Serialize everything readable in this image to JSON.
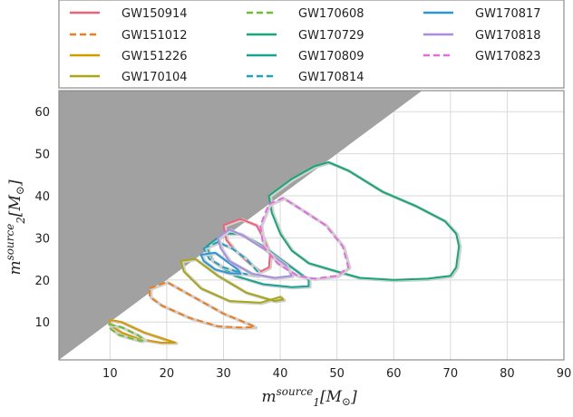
{
  "chart_data": {
    "type": "line",
    "xlabel": "m_1^{source}[M_⊙]",
    "ylabel": "m_2^{source}[M_⊙]",
    "xlim": [
      1,
      90
    ],
    "ylim": [
      1,
      65
    ],
    "xticks": [
      "10",
      "20",
      "30",
      "40",
      "50",
      "60",
      "70",
      "80",
      "90"
    ],
    "yticks": [
      "10",
      "20",
      "30",
      "40",
      "50",
      "60"
    ],
    "grid": true,
    "legend_position": "top",
    "excluded_region": "m2 > m1 (shaded gray)",
    "series": [
      {
        "name": "GW150914",
        "color": "#f2617a",
        "dash": "solid",
        "values": [
          [
            30,
            33
          ],
          [
            33,
            34.5
          ],
          [
            35.8,
            33
          ],
          [
            37,
            30
          ],
          [
            38.2,
            26
          ],
          [
            38,
            23
          ],
          [
            36.5,
            22
          ],
          [
            34.5,
            24
          ],
          [
            32,
            27
          ],
          [
            30.5,
            29.5
          ]
        ]
      },
      {
        "name": "GW151012",
        "color": "#ef7d1a",
        "dash": "dashed",
        "values": [
          [
            17,
            18
          ],
          [
            20,
            19.5
          ],
          [
            24,
            16.5
          ],
          [
            30,
            12
          ],
          [
            35,
            9.2
          ],
          [
            35.5,
            8.8
          ],
          [
            33,
            8.7
          ],
          [
            29,
            9
          ],
          [
            24,
            11
          ],
          [
            19,
            14
          ],
          [
            17,
            16
          ]
        ]
      },
      {
        "name": "GW151226",
        "color": "#d49a00",
        "dash": "solid",
        "values": [
          [
            10,
            10.5
          ],
          [
            12,
            10
          ],
          [
            16,
            7.5
          ],
          [
            21,
            5.3
          ],
          [
            21.5,
            5.1
          ],
          [
            19,
            5.1
          ],
          [
            15,
            6
          ],
          [
            12,
            7.5
          ],
          [
            10,
            9.3
          ]
        ]
      },
      {
        "name": "GW170104",
        "color": "#a7a717",
        "dash": "solid",
        "values": [
          [
            22.5,
            24.5
          ],
          [
            25,
            25
          ],
          [
            29,
            21
          ],
          [
            34,
            17
          ],
          [
            39,
            15
          ],
          [
            40.5,
            15.3
          ],
          [
            40,
            16
          ],
          [
            36.5,
            14.6
          ],
          [
            31,
            15
          ],
          [
            26,
            18
          ],
          [
            23,
            22
          ]
        ]
      },
      {
        "name": "GW170608",
        "color": "#6bbf2e",
        "dash": "dashed",
        "values": [
          [
            9.8,
            9.5
          ],
          [
            12,
            8.8
          ],
          [
            15,
            6.8
          ],
          [
            16,
            5.8
          ],
          [
            15.5,
            5.5
          ],
          [
            14,
            6
          ],
          [
            11.5,
            7
          ],
          [
            10,
            8.5
          ]
        ]
      },
      {
        "name": "GW170729",
        "color": "#14a876",
        "dash": "solid",
        "values": [
          [
            38,
            40
          ],
          [
            42,
            44
          ],
          [
            46,
            47
          ],
          [
            48.5,
            48
          ],
          [
            52,
            46
          ],
          [
            58,
            41
          ],
          [
            64,
            37.5
          ],
          [
            69,
            34
          ],
          [
            71,
            31
          ],
          [
            71.5,
            28
          ],
          [
            71,
            23
          ],
          [
            70,
            21
          ],
          [
            66,
            20.3
          ],
          [
            60,
            20
          ],
          [
            54,
            20.5
          ],
          [
            50,
            22
          ],
          [
            45,
            24
          ],
          [
            42,
            27
          ],
          [
            40,
            31
          ],
          [
            38.5,
            36
          ]
        ]
      },
      {
        "name": "GW170809",
        "color": "#17a592",
        "dash": "solid",
        "values": [
          [
            27,
            28
          ],
          [
            30,
            31
          ],
          [
            33,
            31
          ],
          [
            37,
            28
          ],
          [
            42,
            23
          ],
          [
            45,
            20
          ],
          [
            45,
            18.5
          ],
          [
            42,
            18.3
          ],
          [
            37,
            19
          ],
          [
            32,
            21
          ],
          [
            28,
            24.5
          ]
        ]
      },
      {
        "name": "GW170814",
        "color": "#21a1c2",
        "dash": "dashed",
        "values": [
          [
            26.5,
            27.5
          ],
          [
            29,
            29
          ],
          [
            31.5,
            27.5
          ],
          [
            34,
            25
          ],
          [
            36,
            22
          ],
          [
            36,
            21
          ],
          [
            33.5,
            21.5
          ],
          [
            30,
            23
          ],
          [
            27.5,
            25
          ]
        ]
      },
      {
        "name": "GW170817",
        "color": "#2a97d8",
        "dash": "solid",
        "values": [
          [
            26,
            26
          ],
          [
            28.5,
            26.5
          ],
          [
            30.5,
            24.5
          ],
          [
            32.5,
            22.5
          ],
          [
            33,
            21.5
          ],
          [
            31,
            21.6
          ],
          [
            28.5,
            22.5
          ],
          [
            26.5,
            24.5
          ]
        ]
      },
      {
        "name": "GW170818",
        "color": "#a78ee0",
        "dash": "solid",
        "values": [
          [
            29,
            30
          ],
          [
            31,
            32
          ],
          [
            33.5,
            30.5
          ],
          [
            37,
            27.5
          ],
          [
            41,
            23.5
          ],
          [
            42,
            21
          ],
          [
            39,
            20.5
          ],
          [
            35,
            21.5
          ],
          [
            31,
            24.5
          ],
          [
            29.5,
            27.5
          ]
        ]
      },
      {
        "name": "GW170823",
        "color": "#e86ae2",
        "dash": "dashed",
        "values": [
          [
            38,
            38
          ],
          [
            40.5,
            39.5
          ],
          [
            44,
            36.5
          ],
          [
            48,
            33
          ],
          [
            51,
            28
          ],
          [
            52,
            23
          ],
          [
            50,
            21
          ],
          [
            46,
            20.3
          ],
          [
            43,
            21
          ],
          [
            39.5,
            24
          ],
          [
            37,
            28
          ],
          [
            36.5,
            33
          ]
        ]
      }
    ]
  }
}
